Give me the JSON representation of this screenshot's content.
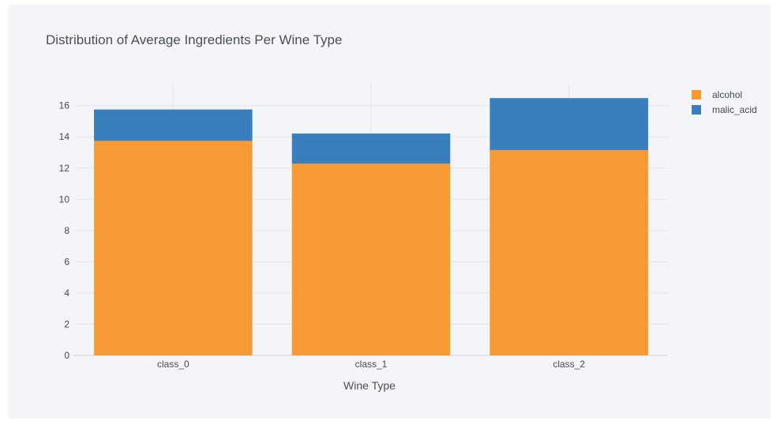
{
  "chart_data": {
    "type": "bar",
    "stacked": true,
    "title": "Distribution of Average Ingredients Per Wine Type",
    "xlabel": "Wine Type",
    "ylabel": "",
    "categories": [
      "class_0",
      "class_1",
      "class_2"
    ],
    "series": [
      {
        "name": "alcohol",
        "color": "#f69a36",
        "values": [
          13.74,
          12.28,
          13.15
        ]
      },
      {
        "name": "malic_acid",
        "color": "#3a7fbd",
        "values": [
          2.01,
          1.93,
          3.33
        ]
      }
    ],
    "ylim": [
      0,
      17.4
    ],
    "yticks": [
      0,
      2,
      4,
      6,
      8,
      10,
      12,
      14,
      16
    ],
    "grid": true,
    "legend_position": "top-right",
    "colors": {
      "background": "#f4f5f8",
      "grid": "#e3e5ea",
      "text": "#444b55"
    }
  }
}
